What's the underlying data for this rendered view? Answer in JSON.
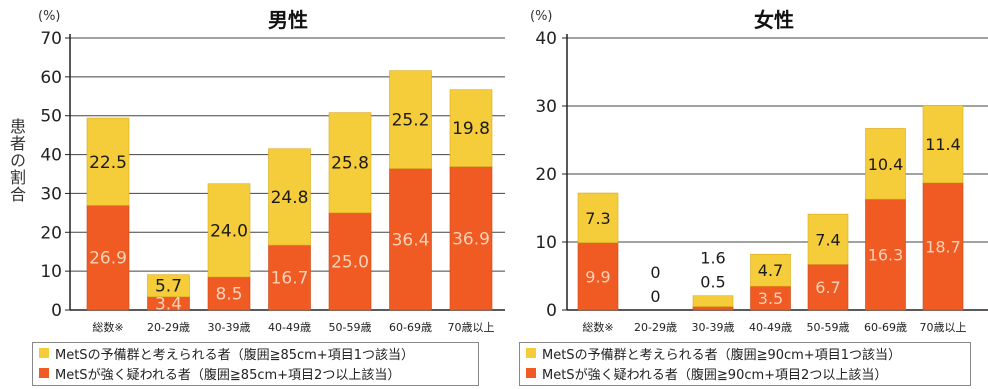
{
  "colors": {
    "prereserve": "#F5CC3A",
    "suspected": "#F05A23",
    "value_label_light": "#FBD2B8",
    "value_label_dark": "#1a1a1a"
  },
  "ylabel": "患者の割合",
  "chart_data": [
    {
      "type": "bar",
      "stacked": true,
      "title": "男性",
      "unit": "(%)",
      "ylim": [
        0,
        70
      ],
      "yticks": [
        0,
        10,
        20,
        30,
        40,
        50,
        60,
        70
      ],
      "grid": true,
      "categories": [
        "総数※",
        "20-29歳",
        "30-39歳",
        "40-49歳",
        "50-59歳",
        "60-69歳",
        "70歳以上"
      ],
      "series": [
        {
          "name": "MetSが強く疑われる者（腹囲≧85cm+項目2つ以上該当）",
          "values": [
            26.9,
            3.4,
            8.5,
            16.7,
            25.0,
            36.4,
            36.9
          ],
          "labels": [
            "26.9",
            "3.4",
            "8.5",
            "16.7",
            "25.0",
            "36.4",
            "36.9"
          ]
        },
        {
          "name": "MetSの予備群と考えられる者（腹囲≧85cm+項目1つ該当）",
          "values": [
            22.5,
            5.7,
            24.0,
            24.8,
            25.8,
            25.2,
            19.8
          ],
          "labels": [
            "22.5",
            "5.7",
            "24.0",
            "24.8",
            "25.8",
            "25.2",
            "19.8"
          ]
        }
      ],
      "legend": [
        "MetSの予備群と考えられる者（腹囲≧85cm+項目1つ該当）",
        "MetSが強く疑われる者（腹囲≧85cm+項目2つ以上該当）"
      ],
      "legend_position": "bottom"
    },
    {
      "type": "bar",
      "stacked": true,
      "title": "女性",
      "unit": "(%)",
      "ylim": [
        0,
        40
      ],
      "yticks": [
        0,
        10,
        20,
        30,
        40
      ],
      "grid": true,
      "categories": [
        "総数※",
        "20-29歳",
        "30-39歳",
        "40-49歳",
        "50-59歳",
        "60-69歳",
        "70歳以上"
      ],
      "series": [
        {
          "name": "MetSが強く疑われる者（腹囲≧90cm+項目2つ以上該当）",
          "values": [
            9.9,
            0,
            0.5,
            3.5,
            6.7,
            16.3,
            18.7
          ],
          "labels": [
            "9.9",
            "0",
            "0.5",
            "3.5",
            "6.7",
            "16.3",
            "18.7"
          ]
        },
        {
          "name": "MetSの予備群と考えられる者（腹囲≧90cm+項目1つ該当）",
          "values": [
            7.3,
            0,
            1.6,
            4.7,
            7.4,
            10.4,
            11.4
          ],
          "labels": [
            "7.3",
            "0",
            "1.6",
            "4.7",
            "7.4",
            "10.4",
            "11.4"
          ]
        }
      ],
      "legend": [
        "MetSの予備群と考えられる者（腹囲≧90cm+項目1つ該当）",
        "MetSが強く疑われる者（腹囲≧90cm+項目2つ以上該当）"
      ],
      "legend_position": "bottom"
    }
  ]
}
